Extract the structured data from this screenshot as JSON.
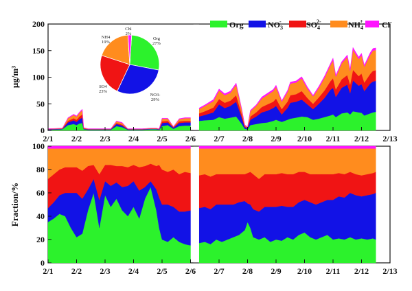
{
  "colors": {
    "Org": "#2cf22c",
    "NO3": "#1212e6",
    "SO4": "#f01414",
    "NH4": "#ff8c1e",
    "Cl": "#ff14ff"
  },
  "chart_data": [
    {
      "type": "area",
      "stacked": true,
      "x_label_ticks": [
        "2/1",
        "2/2",
        "2/3",
        "2/4",
        "2/5",
        "2/6",
        "2/7",
        "2/8",
        "2/9",
        "2/10",
        "2/11",
        "2/12",
        "2/13"
      ],
      "xlim": [
        1,
        13
      ],
      "ylabel": "μg/m³",
      "ylim": [
        0,
        200
      ],
      "yticks": [
        0,
        50,
        100,
        150,
        200
      ],
      "gap": [
        6.1,
        6.3
      ],
      "legend": {
        "position": "top-right",
        "entries": [
          {
            "key": "Org",
            "text": "Org"
          },
          {
            "key": "NO3",
            "text": "NO",
            "sub": "3",
            "sup": "-"
          },
          {
            "key": "SO4",
            "text": "SO",
            "sub": "4",
            "sup": "2-"
          },
          {
            "key": "NH4",
            "text": "NH",
            "sub": "4",
            "sup": "+"
          },
          {
            "key": "Cl",
            "text": "Cl",
            "sup": "-"
          }
        ]
      },
      "x": [
        1.0,
        1.5,
        1.7,
        1.9,
        2.0,
        2.1,
        2.2,
        2.25,
        2.4,
        2.8,
        3.0,
        3.2,
        3.4,
        3.6,
        3.8,
        4.0,
        4.3,
        4.6,
        4.8,
        4.9,
        5.0,
        5.2,
        5.4,
        5.6,
        5.8,
        5.9,
        6.0,
        6.1,
        6.3,
        6.5,
        6.8,
        7.0,
        7.2,
        7.4,
        7.6,
        7.8,
        7.9,
        8.0,
        8.1,
        8.3,
        8.5,
        8.7,
        8.9,
        9.0,
        9.2,
        9.4,
        9.5,
        9.7,
        9.9,
        10.1,
        10.3,
        10.5,
        10.7,
        10.9,
        11.0,
        11.1,
        11.3,
        11.5,
        11.6,
        11.7,
        11.9,
        12.0,
        12.1,
        12.3,
        12.4,
        12.5
      ],
      "series": [
        {
          "key": "Org",
          "values": [
            1,
            2,
            10,
            12,
            10,
            13,
            14,
            2,
            1,
            1,
            1,
            1,
            8,
            6,
            1,
            1,
            1,
            2,
            2,
            1,
            8,
            10,
            3,
            8,
            9,
            9,
            9,
            null,
            18,
            19,
            20,
            25,
            22,
            24,
            26,
            12,
            3,
            2,
            10,
            12,
            14,
            15,
            18,
            20,
            16,
            20,
            22,
            24,
            26,
            25,
            20,
            22,
            25,
            28,
            30,
            25,
            32,
            34,
            30,
            36,
            34,
            33,
            28,
            32,
            34,
            35
          ]
        },
        {
          "key": "NO3",
          "values": [
            1,
            1,
            5,
            7,
            6,
            8,
            10,
            1,
            1,
            1,
            1,
            1,
            4,
            3,
            1,
            1,
            1,
            1,
            1,
            1,
            6,
            5,
            2,
            6,
            6,
            6,
            6,
            null,
            8,
            10,
            14,
            24,
            20,
            22,
            28,
            12,
            3,
            2,
            10,
            14,
            20,
            22,
            24,
            26,
            14,
            22,
            30,
            30,
            32,
            24,
            20,
            28,
            36,
            48,
            50,
            38,
            48,
            52,
            40,
            58,
            50,
            54,
            46,
            56,
            58,
            58
          ]
        },
        {
          "key": "SO4",
          "values": [
            0.5,
            0.5,
            3,
            4,
            4,
            5,
            6,
            1,
            0.5,
            0.5,
            0.5,
            0.5,
            2,
            2,
            0.5,
            0.5,
            0.5,
            0.5,
            0.5,
            0.5,
            3,
            3,
            1,
            3,
            3,
            3,
            3,
            null,
            6,
            7,
            9,
            10,
            10,
            10,
            12,
            6,
            2,
            1,
            6,
            8,
            10,
            12,
            12,
            14,
            10,
            12,
            14,
            14,
            16,
            12,
            10,
            12,
            14,
            16,
            18,
            14,
            16,
            18,
            16,
            20,
            18,
            20,
            16,
            18,
            20,
            20
          ]
        },
        {
          "key": "NH4",
          "values": [
            0.5,
            0.5,
            5,
            6,
            6,
            7,
            8,
            1,
            0.5,
            0.5,
            0.5,
            0.5,
            3,
            3,
            0.5,
            0.5,
            0.5,
            0.5,
            0.5,
            0.5,
            5,
            4,
            1,
            4,
            5,
            5,
            5,
            null,
            8,
            10,
            12,
            16,
            14,
            15,
            20,
            8,
            2,
            1,
            10,
            12,
            16,
            18,
            20,
            22,
            14,
            18,
            22,
            22,
            24,
            18,
            14,
            18,
            24,
            30,
            34,
            24,
            30,
            34,
            26,
            38,
            32,
            34,
            30,
            36,
            38,
            38
          ]
        },
        {
          "key": "Cl",
          "values": [
            0.2,
            0.2,
            1,
            1.5,
            1.5,
            1.5,
            2,
            0.3,
            0.2,
            0.2,
            0.2,
            0.2,
            1,
            1,
            0.2,
            0.2,
            0.2,
            0.2,
            0.2,
            0.2,
            1,
            1,
            0.3,
            1,
            1,
            1,
            1,
            null,
            2,
            2,
            3,
            3,
            3,
            3,
            3,
            2,
            1,
            0.5,
            2,
            2,
            3,
            3,
            3,
            3,
            2,
            3,
            3,
            3,
            3,
            3,
            2,
            3,
            3,
            3,
            4,
            3,
            3,
            4,
            3,
            4,
            4,
            4,
            3,
            4,
            4,
            4
          ]
        }
      ]
    },
    {
      "type": "area",
      "stacked": true,
      "x_label_ticks": [
        "2/1",
        "2/2",
        "2/3",
        "2/4",
        "2/5",
        "2/6",
        "2/7",
        "2/8",
        "2/9",
        "2/10",
        "2/11",
        "2/12",
        "2/13"
      ],
      "xlim": [
        1,
        13
      ],
      "ylabel": "Fraction/%",
      "ylim": [
        0,
        100
      ],
      "yticks": [
        0,
        20,
        40,
        60,
        80,
        100
      ],
      "gap": [
        6.1,
        6.3
      ],
      "x": [
        1.0,
        1.2,
        1.4,
        1.6,
        1.8,
        2.0,
        2.2,
        2.4,
        2.6,
        2.8,
        3.0,
        3.2,
        3.4,
        3.6,
        3.8,
        4.0,
        4.2,
        4.4,
        4.6,
        4.8,
        4.9,
        5.0,
        5.2,
        5.4,
        5.6,
        5.8,
        6.0,
        6.1,
        6.3,
        6.5,
        6.7,
        6.9,
        7.1,
        7.3,
        7.5,
        7.7,
        7.9,
        8.0,
        8.1,
        8.2,
        8.4,
        8.6,
        8.8,
        9.0,
        9.2,
        9.4,
        9.6,
        9.8,
        10.0,
        10.2,
        10.4,
        10.6,
        10.8,
        11.0,
        11.2,
        11.4,
        11.6,
        11.8,
        12.0,
        12.2,
        12.4,
        12.5
      ],
      "series": [
        {
          "key": "Org",
          "values": [
            35,
            38,
            42,
            40,
            30,
            22,
            25,
            45,
            60,
            30,
            58,
            48,
            55,
            45,
            40,
            48,
            38,
            55,
            65,
            45,
            30,
            20,
            18,
            22,
            18,
            16,
            15,
            null,
            17,
            18,
            16,
            20,
            18,
            20,
            22,
            24,
            28,
            35,
            30,
            22,
            20,
            22,
            18,
            20,
            19,
            22,
            20,
            24,
            26,
            22,
            20,
            22,
            24,
            20,
            21,
            20,
            22,
            20,
            21,
            20,
            21,
            20
          ]
        },
        {
          "key": "NO3",
          "values": [
            12,
            14,
            16,
            20,
            30,
            38,
            30,
            18,
            12,
            24,
            12,
            18,
            14,
            20,
            26,
            22,
            24,
            10,
            5,
            18,
            26,
            30,
            32,
            26,
            26,
            28,
            30,
            null,
            30,
            30,
            30,
            30,
            32,
            30,
            28,
            28,
            25,
            16,
            20,
            24,
            24,
            26,
            30,
            28,
            30,
            26,
            28,
            28,
            28,
            30,
            30,
            30,
            30,
            34,
            36,
            36,
            38,
            38,
            36,
            38,
            38,
            40
          ]
        },
        {
          "key": "SO4",
          "values": [
            25,
            24,
            22,
            22,
            22,
            22,
            24,
            20,
            12,
            22,
            14,
            18,
            14,
            18,
            16,
            14,
            20,
            18,
            15,
            20,
            28,
            30,
            28,
            32,
            32,
            34,
            32,
            null,
            28,
            28,
            28,
            26,
            26,
            26,
            26,
            24,
            23,
            26,
            28,
            30,
            28,
            28,
            28,
            28,
            28,
            28,
            28,
            26,
            24,
            24,
            26,
            24,
            22,
            22,
            20,
            20,
            18,
            18,
            18,
            18,
            18,
            18
          ]
        },
        {
          "key": "NH4",
          "values": [
            26,
            22,
            18,
            16,
            16,
            16,
            19,
            15,
            14,
            22,
            14,
            14,
            15,
            15,
            16,
            14,
            16,
            15,
            13,
            15,
            14,
            18,
            20,
            18,
            22,
            20,
            21,
            null,
            23,
            22,
            24,
            22,
            22,
            22,
            22,
            22,
            22,
            21,
            20,
            22,
            26,
            22,
            22,
            22,
            21,
            22,
            22,
            20,
            20,
            22,
            22,
            22,
            22,
            22,
            21,
            22,
            20,
            22,
            23,
            22,
            21,
            20
          ]
        },
        {
          "key": "Cl",
          "values": [
            2,
            2,
            2,
            2,
            2,
            2,
            2,
            2,
            2,
            2,
            2,
            2,
            2,
            2,
            2,
            2,
            2,
            2,
            2,
            2,
            2,
            2,
            2,
            2,
            2,
            2,
            2,
            null,
            2,
            2,
            2,
            2,
            2,
            2,
            2,
            2,
            2,
            2,
            2,
            2,
            2,
            2,
            2,
            2,
            2,
            2,
            2,
            2,
            2,
            2,
            2,
            2,
            2,
            2,
            2,
            2,
            2,
            2,
            2,
            2,
            2,
            2
          ]
        }
      ]
    },
    {
      "type": "pie",
      "slices": [
        {
          "key": "Org",
          "label": "Org",
          "pct_text": "27%",
          "value": 27
        },
        {
          "key": "NO3",
          "label": "NO3-",
          "pct_text": "29%",
          "value": 29
        },
        {
          "key": "SO4",
          "label": "SO4",
          "pct_text": "23%",
          "value": 23
        },
        {
          "key": "NH4",
          "label": "NH4",
          "pct_text": "19%",
          "value": 19
        },
        {
          "key": "Cl",
          "label": "Chl",
          "pct_text": "2%",
          "value": 2
        }
      ]
    }
  ]
}
